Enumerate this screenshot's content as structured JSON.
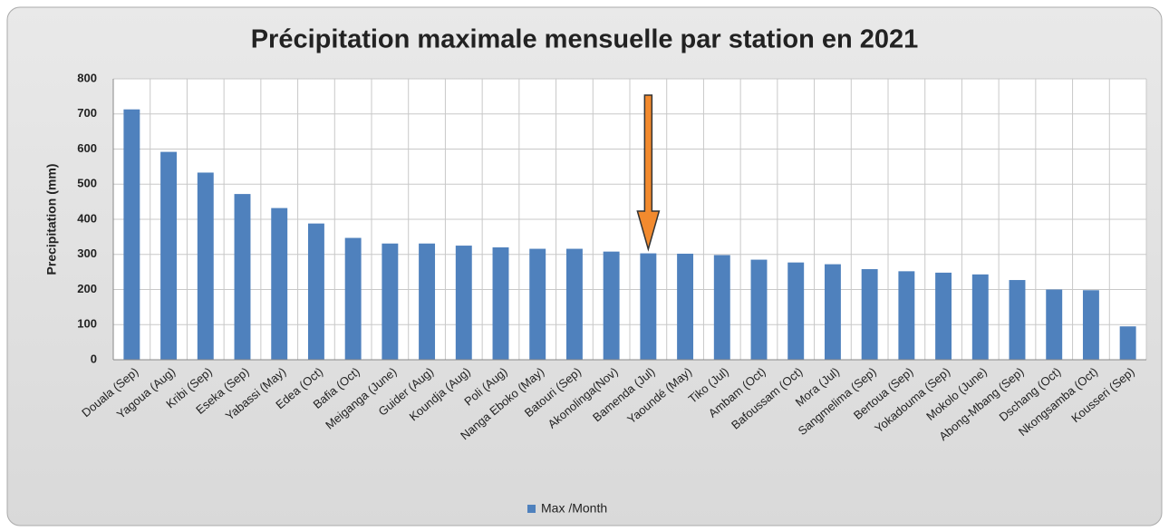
{
  "chart_data": {
    "type": "bar",
    "title": "Précipitation maximale mensuelle par station en 2021",
    "y_label": "Precipitation (mm)",
    "categories": [
      "Douala (Sep)",
      "Yagoua (Aug)",
      "Kribi (Sep)",
      "Eseka (Sep)",
      "Yabassi (May)",
      "Edea (Oct)",
      "Bafia (Oct)",
      "Meiganga (June)",
      "Guider (Aug)",
      "Koundja (Aug)",
      "Poli (Aug)",
      "Nanga Eboko (May)",
      "Batouri (Sep)",
      "Akonolinga(Nov)",
      "Bamenda (Jul)",
      "Yaoundé (May)",
      "Tiko (Jul)",
      "Ambam (Oct)",
      "Bafoussam (Oct)",
      "Mora (Jul)",
      "Sangmelima (Sep)",
      "Bertoua (Sep)",
      "Yokadouma (Sep)",
      "Mokolo (June)",
      "Abong-Mbang (Sep)",
      "Dschang (Oct)",
      "Nkongsamba (Oct)",
      "Kousseri (Sep)"
    ],
    "series": [
      {
        "name": "Max /Month",
        "color": "#4f81bd",
        "values": [
          713,
          592,
          533,
          472,
          432,
          388,
          347,
          331,
          331,
          325,
          320,
          316,
          316,
          308,
          303,
          302,
          298,
          285,
          277,
          272,
          258,
          252,
          248,
          243,
          227,
          200,
          198,
          95
        ]
      }
    ],
    "ylim": [
      0,
      800
    ],
    "yticks": [
      0,
      100,
      200,
      300,
      400,
      500,
      600,
      700,
      800
    ],
    "grid": true,
    "legend": "bottom"
  }
}
